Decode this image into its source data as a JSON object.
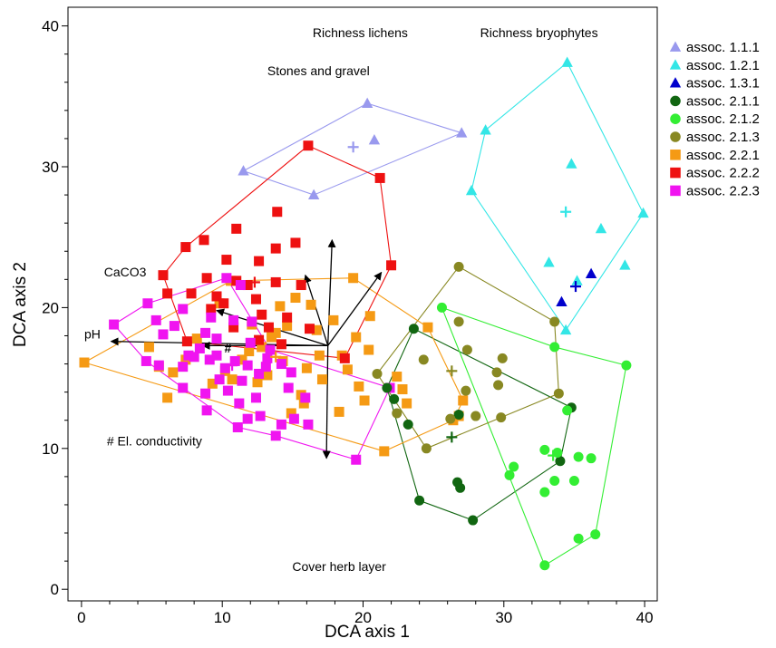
{
  "chart_data": {
    "type": "scatter",
    "xlabel": "DCA axis 1",
    "ylabel": "DCA axis 2",
    "xlim": [
      -1,
      41
    ],
    "ylim": [
      -0.5,
      41
    ],
    "xticks": [
      0,
      10,
      20,
      30,
      40
    ],
    "yticks": [
      0,
      10,
      20,
      30,
      40
    ],
    "grid": false,
    "legend_position": "outside-right",
    "arrow_origin": [
      17.5,
      17.3
    ],
    "arrows": [
      {
        "label": "Richness lichens",
        "x": 17.8,
        "y": 24.8,
        "label_x": 19.8,
        "label_y": 39.2
      },
      {
        "label": "Richness bryophytes",
        "x": 21.3,
        "y": 22.5,
        "label_x": 32.5,
        "label_y": 39.2
      },
      {
        "label": "Stones and gravel",
        "x": 15.9,
        "y": 22.3,
        "label_x": 13.2,
        "label_y": 36.5
      },
      {
        "label": "CaCO3",
        "x": 9.6,
        "y": 19.8,
        "label_x": 1.6,
        "label_y": 22.2
      },
      {
        "label": "pH",
        "x": 2.1,
        "y": 17.6,
        "label_x": 0.2,
        "label_y": 17.8
      },
      {
        "label": "# El. conductivity",
        "x": 8.6,
        "y": 17.3,
        "label_x": 1.8,
        "label_y": 10.2,
        "marker_label": "#",
        "marker_x": 10.4,
        "marker_y": 16.8
      },
      {
        "label": "Cover herb layer",
        "x": 17.4,
        "y": 9.3,
        "label_x": 18.3,
        "label_y": 1.3
      }
    ],
    "series": [
      {
        "name": "assoc. 1.1.1",
        "marker": "triangle",
        "color": "#9999ee",
        "points": [
          [
            11.5,
            29.7
          ],
          [
            16.5,
            28.0
          ],
          [
            20.3,
            34.5
          ],
          [
            20.8,
            31.9
          ],
          [
            27.0,
            32.4
          ]
        ],
        "hull": [
          [
            11.5,
            29.7
          ],
          [
            20.3,
            34.5
          ],
          [
            27.0,
            32.4
          ],
          [
            16.5,
            28.0
          ]
        ],
        "centroid": [
          19.3,
          31.4
        ]
      },
      {
        "name": "assoc. 1.2.1",
        "marker": "triangle",
        "color": "#33e6e6",
        "points": [
          [
            28.7,
            32.6
          ],
          [
            34.5,
            37.4
          ],
          [
            34.8,
            30.2
          ],
          [
            27.7,
            28.3
          ],
          [
            33.2,
            23.2
          ],
          [
            35.2,
            21.9
          ],
          [
            36.9,
            25.6
          ],
          [
            38.6,
            23.0
          ],
          [
            39.9,
            26.7
          ],
          [
            34.4,
            18.4
          ]
        ],
        "hull": [
          [
            28.7,
            32.6
          ],
          [
            34.5,
            37.4
          ],
          [
            39.9,
            26.7
          ],
          [
            34.4,
            18.4
          ],
          [
            27.7,
            28.3
          ]
        ],
        "centroid": [
          34.4,
          26.8
        ]
      },
      {
        "name": "assoc. 1.3.1",
        "marker": "triangle",
        "color": "#0000cc",
        "points": [
          [
            34.1,
            20.4
          ],
          [
            36.2,
            22.4
          ]
        ],
        "hull": [],
        "centroid": [
          35.1,
          21.5
        ]
      },
      {
        "name": "assoc. 2.1.1",
        "marker": "circle",
        "color": "#116611",
        "points": [
          [
            23.6,
            18.5
          ],
          [
            21.7,
            14.3
          ],
          [
            23.2,
            11.7
          ],
          [
            24.0,
            6.3
          ],
          [
            26.8,
            12.4
          ],
          [
            26.7,
            7.6
          ],
          [
            26.9,
            7.2
          ],
          [
            27.8,
            4.9
          ],
          [
            34.0,
            9.1
          ],
          [
            34.8,
            12.9
          ],
          [
            22.2,
            13.5
          ]
        ],
        "hull": [
          [
            23.6,
            18.5
          ],
          [
            34.8,
            12.9
          ],
          [
            34.0,
            9.1
          ],
          [
            27.8,
            4.9
          ],
          [
            24.0,
            6.3
          ],
          [
            21.7,
            14.3
          ]
        ],
        "centroid": [
          26.3,
          10.8
        ]
      },
      {
        "name": "assoc. 2.1.2",
        "marker": "circle",
        "color": "#33ee33",
        "points": [
          [
            25.6,
            20.0
          ],
          [
            33.6,
            17.2
          ],
          [
            38.7,
            15.9
          ],
          [
            34.5,
            12.7
          ],
          [
            32.9,
            9.9
          ],
          [
            33.8,
            9.7
          ],
          [
            35.3,
            9.4
          ],
          [
            36.2,
            9.3
          ],
          [
            30.7,
            8.7
          ],
          [
            30.4,
            8.1
          ],
          [
            33.6,
            7.7
          ],
          [
            35.0,
            7.7
          ],
          [
            32.9,
            6.9
          ],
          [
            36.5,
            3.9
          ],
          [
            35.3,
            3.6
          ],
          [
            32.9,
            1.7
          ]
        ],
        "hull": [
          [
            25.6,
            20.0
          ],
          [
            33.6,
            17.2
          ],
          [
            38.7,
            15.9
          ],
          [
            36.5,
            3.9
          ],
          [
            32.9,
            1.7
          ]
        ],
        "centroid": [
          33.5,
          9.5
        ]
      },
      {
        "name": "assoc. 2.1.3",
        "marker": "circle",
        "color": "#888822",
        "points": [
          [
            26.8,
            22.9
          ],
          [
            26.8,
            19.0
          ],
          [
            33.6,
            19.0
          ],
          [
            27.4,
            17.0
          ],
          [
            29.9,
            16.4
          ],
          [
            24.3,
            16.3
          ],
          [
            21.0,
            15.3
          ],
          [
            29.5,
            15.4
          ],
          [
            27.3,
            14.1
          ],
          [
            29.6,
            14.5
          ],
          [
            33.9,
            13.9
          ],
          [
            28.0,
            12.3
          ],
          [
            29.8,
            12.2
          ],
          [
            26.2,
            12.1
          ],
          [
            22.4,
            12.5
          ],
          [
            24.5,
            10.0
          ]
        ],
        "hull": [
          [
            26.8,
            22.9
          ],
          [
            33.6,
            19.0
          ],
          [
            33.9,
            13.9
          ],
          [
            24.5,
            10.0
          ],
          [
            21.0,
            15.3
          ]
        ],
        "centroid": [
          26.3,
          15.5
        ]
      },
      {
        "name": "assoc. 2.2.1",
        "marker": "square",
        "color": "#f59a14",
        "points": [
          [
            0.2,
            16.1
          ],
          [
            4.8,
            17.2
          ],
          [
            10.6,
            21.9
          ],
          [
            15.2,
            20.7
          ],
          [
            19.3,
            22.1
          ],
          [
            20.5,
            19.4
          ],
          [
            24.6,
            18.6
          ],
          [
            27.1,
            13.4
          ],
          [
            26.8,
            12.3
          ],
          [
            26.4,
            12.0
          ],
          [
            21.5,
            9.8
          ],
          [
            13.5,
            17.9
          ],
          [
            16.0,
            15.7
          ],
          [
            19.7,
            14.4
          ],
          [
            18.3,
            12.6
          ],
          [
            14.9,
            12.5
          ],
          [
            10.7,
            14.9
          ],
          [
            6.1,
            13.6
          ],
          [
            8.2,
            17.8
          ],
          [
            12.1,
            18.8
          ],
          [
            14.3,
            16.2
          ],
          [
            17.1,
            14.9
          ],
          [
            15.8,
            13.2
          ],
          [
            20.1,
            13.4
          ],
          [
            22.4,
            15.1
          ],
          [
            16.7,
            18.4
          ],
          [
            12.8,
            17.2
          ],
          [
            9.3,
            14.6
          ],
          [
            6.5,
            15.4
          ],
          [
            11.4,
            16.3
          ],
          [
            13.2,
            15.2
          ],
          [
            18.5,
            16.6
          ],
          [
            17.9,
            19.1
          ],
          [
            16.3,
            20.2
          ],
          [
            22.8,
            14.2
          ],
          [
            23.1,
            13.2
          ],
          [
            14.6,
            18.7
          ],
          [
            11.9,
            16.9
          ],
          [
            9.8,
            20.3
          ],
          [
            15.6,
            13.8
          ],
          [
            18.9,
            15.6
          ],
          [
            20.4,
            17.0
          ],
          [
            7.4,
            16.3
          ],
          [
            5.5,
            15.8
          ],
          [
            10.2,
            15.5
          ],
          [
            12.5,
            14.7
          ],
          [
            14.1,
            20.1
          ],
          [
            16.9,
            16.6
          ],
          [
            19.5,
            17.9
          ],
          [
            13.8,
            18.2
          ]
        ],
        "hull": [
          [
            0.2,
            16.1
          ],
          [
            10.6,
            21.9
          ],
          [
            19.3,
            22.1
          ],
          [
            24.6,
            18.6
          ],
          [
            27.1,
            13.4
          ],
          [
            26.4,
            12.0
          ],
          [
            21.5,
            9.8
          ]
        ],
        "centroid": [
          13.8,
          16.5
        ]
      },
      {
        "name": "assoc. 2.2.2",
        "marker": "square",
        "color": "#ee1111",
        "points": [
          [
            16.1,
            31.5
          ],
          [
            21.2,
            29.2
          ],
          [
            22.0,
            23.0
          ],
          [
            11.0,
            25.6
          ],
          [
            13.9,
            26.8
          ],
          [
            15.2,
            24.6
          ],
          [
            13.8,
            24.2
          ],
          [
            7.4,
            24.3
          ],
          [
            8.7,
            24.8
          ],
          [
            10.3,
            23.4
          ],
          [
            12.6,
            23.3
          ],
          [
            5.8,
            22.3
          ],
          [
            6.1,
            21.0
          ],
          [
            7.8,
            21.0
          ],
          [
            9.6,
            20.8
          ],
          [
            11.8,
            21.6
          ],
          [
            8.9,
            22.1
          ],
          [
            13.8,
            21.8
          ],
          [
            15.6,
            21.6
          ],
          [
            12.8,
            19.5
          ],
          [
            14.6,
            19.3
          ],
          [
            11.0,
            21.9
          ],
          [
            12.4,
            20.6
          ],
          [
            10.8,
            18.6
          ],
          [
            18.7,
            16.4
          ],
          [
            13.3,
            18.6
          ],
          [
            16.2,
            18.5
          ],
          [
            7.5,
            17.6
          ],
          [
            12.6,
            17.7
          ],
          [
            14.2,
            17.4
          ],
          [
            9.2,
            19.9
          ],
          [
            10.1,
            20.3
          ]
        ],
        "hull": [
          [
            16.1,
            31.5
          ],
          [
            21.2,
            29.2
          ],
          [
            22.0,
            23.0
          ],
          [
            18.7,
            16.4
          ],
          [
            7.5,
            17.6
          ],
          [
            5.8,
            22.3
          ],
          [
            7.4,
            24.3
          ]
        ],
        "centroid": [
          12.3,
          21.8
        ]
      },
      {
        "name": "assoc. 2.2.3",
        "marker": "square",
        "color": "#f014f0",
        "points": [
          [
            2.3,
            18.8
          ],
          [
            4.7,
            20.3
          ],
          [
            5.3,
            19.1
          ],
          [
            7.2,
            19.9
          ],
          [
            5.8,
            18.1
          ],
          [
            4.6,
            16.2
          ],
          [
            5.5,
            15.9
          ],
          [
            7.2,
            15.8
          ],
          [
            8.0,
            16.5
          ],
          [
            8.4,
            17.1
          ],
          [
            9.6,
            17.8
          ],
          [
            9.2,
            19.3
          ],
          [
            10.8,
            19.1
          ],
          [
            12.1,
            19.0
          ],
          [
            9.1,
            16.3
          ],
          [
            10.2,
            15.7
          ],
          [
            11.8,
            15.9
          ],
          [
            13.1,
            15.8
          ],
          [
            14.2,
            16.0
          ],
          [
            7.2,
            14.3
          ],
          [
            8.8,
            13.9
          ],
          [
            10.4,
            14.1
          ],
          [
            11.2,
            13.2
          ],
          [
            12.4,
            13.6
          ],
          [
            14.7,
            14.3
          ],
          [
            15.1,
            12.1
          ],
          [
            14.2,
            11.7
          ],
          [
            12.7,
            12.3
          ],
          [
            11.8,
            12.1
          ],
          [
            11.1,
            11.5
          ],
          [
            8.9,
            12.7
          ],
          [
            13.8,
            10.9
          ],
          [
            16.1,
            11.7
          ],
          [
            19.5,
            9.2
          ],
          [
            21.9,
            14.3
          ],
          [
            7.6,
            16.6
          ],
          [
            9.6,
            16.6
          ],
          [
            12.0,
            17.5
          ],
          [
            13.4,
            17.0
          ],
          [
            15.9,
            13.6
          ],
          [
            10.3,
            22.1
          ],
          [
            11.3,
            21.6
          ],
          [
            6.6,
            18.7
          ],
          [
            8.8,
            18.2
          ],
          [
            13.2,
            16.4
          ],
          [
            14.9,
            15.4
          ],
          [
            11.4,
            14.8
          ],
          [
            9.8,
            14.9
          ],
          [
            12.6,
            15.3
          ],
          [
            10.9,
            16.2
          ]
        ],
        "hull": [
          [
            2.3,
            18.8
          ],
          [
            4.7,
            20.3
          ],
          [
            10.3,
            22.1
          ],
          [
            13.4,
            17.0
          ],
          [
            21.9,
            14.3
          ],
          [
            19.5,
            9.2
          ],
          [
            13.8,
            10.9
          ],
          [
            11.1,
            11.5
          ],
          [
            7.2,
            14.3
          ],
          [
            4.6,
            16.2
          ]
        ],
        "centroid": [
          10.7,
          15.9
        ]
      }
    ]
  }
}
